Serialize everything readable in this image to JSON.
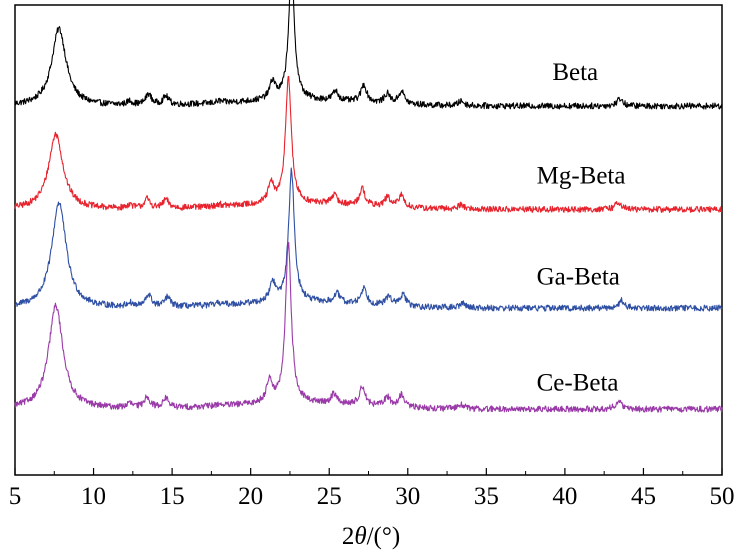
{
  "chart_data": {
    "type": "line",
    "title": "",
    "xlabel": "2θ/(°)",
    "xlabel_prefix": "2",
    "xlabel_symbol": "θ",
    "xlabel_suffix": "/(°)",
    "ylabel": "",
    "xlim": [
      5,
      50
    ],
    "ylim": [
      0,
      100
    ],
    "xticks": [
      5,
      10,
      15,
      20,
      25,
      30,
      35,
      40,
      45,
      50
    ],
    "xtick_labels": [
      "5",
      "10",
      "15",
      "20",
      "25",
      "30",
      "35",
      "40",
      "45",
      "50"
    ],
    "grid": false,
    "legend": "inline labels at right of each trace",
    "series": [
      {
        "name": "Beta",
        "color": "#000000",
        "baseline": 78.5,
        "label_x": 39.2,
        "label_y": 84,
        "peaks": [
          {
            "x": 7.8,
            "h": 16.5
          },
          {
            "x": 12.3,
            "h": 0.8
          },
          {
            "x": 13.5,
            "h": 2.3
          },
          {
            "x": 14.6,
            "h": 1.8
          },
          {
            "x": 18.0,
            "h": 0.4
          },
          {
            "x": 21.4,
            "h": 3.8
          },
          {
            "x": 22.6,
            "h": 28.0
          },
          {
            "x": 25.4,
            "h": 2.0
          },
          {
            "x": 27.2,
            "h": 3.7
          },
          {
            "x": 28.7,
            "h": 2.0
          },
          {
            "x": 29.6,
            "h": 2.7
          },
          {
            "x": 33.4,
            "h": 1.0
          },
          {
            "x": 43.5,
            "h": 1.6
          }
        ]
      },
      {
        "name": "Mg-Beta",
        "color": "#e8232d",
        "baseline": 56.5,
        "label_x": 38.2,
        "label_y": 62,
        "peaks": [
          {
            "x": 7.6,
            "h": 16.0
          },
          {
            "x": 12.3,
            "h": 0.8
          },
          {
            "x": 13.4,
            "h": 2.0
          },
          {
            "x": 14.6,
            "h": 1.8
          },
          {
            "x": 18.0,
            "h": 0.4
          },
          {
            "x": 21.3,
            "h": 4.0
          },
          {
            "x": 22.4,
            "h": 27.0
          },
          {
            "x": 25.3,
            "h": 2.0
          },
          {
            "x": 27.1,
            "h": 3.6
          },
          {
            "x": 28.7,
            "h": 2.0
          },
          {
            "x": 29.6,
            "h": 2.6
          },
          {
            "x": 33.4,
            "h": 1.0
          },
          {
            "x": 43.4,
            "h": 1.6
          }
        ]
      },
      {
        "name": "Ga-Beta",
        "color": "#2e4fa3",
        "baseline": 35.5,
        "label_x": 38.2,
        "label_y": 40.5,
        "peaks": [
          {
            "x": 7.8,
            "h": 22.5
          },
          {
            "x": 12.3,
            "h": 0.8
          },
          {
            "x": 13.5,
            "h": 2.6
          },
          {
            "x": 14.7,
            "h": 2.0
          },
          {
            "x": 18.0,
            "h": 0.4
          },
          {
            "x": 21.4,
            "h": 4.0
          },
          {
            "x": 22.6,
            "h": 28.0
          },
          {
            "x": 25.5,
            "h": 2.0
          },
          {
            "x": 27.2,
            "h": 3.5
          },
          {
            "x": 28.8,
            "h": 2.0
          },
          {
            "x": 29.7,
            "h": 2.5
          },
          {
            "x": 33.5,
            "h": 1.0
          },
          {
            "x": 43.6,
            "h": 1.6
          }
        ]
      },
      {
        "name": "Ce-Beta",
        "color": "#9a3aa8",
        "baseline": 14.0,
        "label_x": 38.2,
        "label_y": 18,
        "peaks": [
          {
            "x": 7.6,
            "h": 22.0
          },
          {
            "x": 12.3,
            "h": 0.9
          },
          {
            "x": 13.4,
            "h": 2.4
          },
          {
            "x": 14.6,
            "h": 2.0
          },
          {
            "x": 18.0,
            "h": 0.4
          },
          {
            "x": 21.2,
            "h": 4.8
          },
          {
            "x": 22.4,
            "h": 34.0
          },
          {
            "x": 25.3,
            "h": 2.1
          },
          {
            "x": 27.1,
            "h": 4.0
          },
          {
            "x": 28.7,
            "h": 2.0
          },
          {
            "x": 29.6,
            "h": 2.6
          },
          {
            "x": 33.4,
            "h": 1.0
          },
          {
            "x": 43.4,
            "h": 1.8
          }
        ]
      }
    ]
  }
}
